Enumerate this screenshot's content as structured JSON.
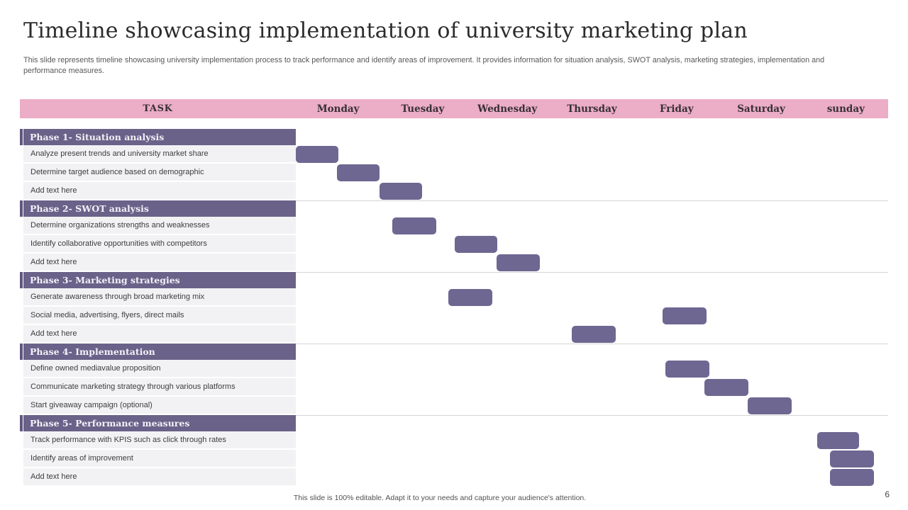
{
  "slide": {
    "title": "Timeline showcasing implementation of university marketing plan",
    "subtitle": "This slide represents timeline showcasing university implementation process to track performance and identify areas of improvement. It provides information for situation analysis, SWOT analysis, marketing strategies, implementation and performance measures.",
    "footer_note": "This slide is 100% editable. Adapt it to your needs and capture your audience's attention.",
    "page_number": "6"
  },
  "colors": {
    "header_pink": "#ecadc6",
    "phase_purple": "#6a6289",
    "accent_purple": "#5f577e",
    "bar_purple": "#6e6791",
    "row_gray": "#f2f2f4",
    "gridline": "#d5d5d9"
  },
  "chart_data": {
    "type": "gantt",
    "task_column_header": "TASK",
    "day_columns": [
      "Monday",
      "Tuesday",
      "Wednesday",
      "Thursday",
      "Friday",
      "Saturday",
      "sunday"
    ],
    "x_axis_range_days": [
      0,
      7
    ],
    "grid": "phase-boundaries-only",
    "phases": [
      {
        "label": "Phase 1- Situation analysis",
        "tasks": [
          {
            "label": "Analyze present trends and university market share",
            "start_day": 0.0,
            "duration_days": 0.5,
            "placeholder": false
          },
          {
            "label": "Determine target audience based on demographic",
            "start_day": 0.49,
            "duration_days": 0.5,
            "placeholder": false
          },
          {
            "label": "Add text here",
            "start_day": 0.99,
            "duration_days": 0.5,
            "placeholder": true
          }
        ]
      },
      {
        "label": "Phase 2- SWOT analysis",
        "tasks": [
          {
            "label": "Determine organizations strengths and weaknesses",
            "start_day": 1.14,
            "duration_days": 0.52,
            "placeholder": false
          },
          {
            "label": "Identify collaborative opportunities with competitors",
            "start_day": 1.88,
            "duration_days": 0.5,
            "placeholder": false
          },
          {
            "label": "Add text here",
            "start_day": 2.37,
            "duration_days": 0.51,
            "placeholder": true
          }
        ]
      },
      {
        "label": "Phase 3- Marketing strategies",
        "tasks": [
          {
            "label": "Generate awareness through broad marketing mix",
            "start_day": 1.8,
            "duration_days": 0.52,
            "placeholder": false
          },
          {
            "label": "Social media, advertising, flyers, direct mails",
            "start_day": 4.33,
            "duration_days": 0.52,
            "placeholder": false
          },
          {
            "label": "Add text here",
            "start_day": 3.26,
            "duration_days": 0.52,
            "placeholder": true
          }
        ]
      },
      {
        "label": "Phase 4- Implementation",
        "tasks": [
          {
            "label": "Define owned mediavalue proposition",
            "start_day": 4.37,
            "duration_days": 0.52,
            "placeholder": false
          },
          {
            "label": "Communicate marketing strategy through various platforms",
            "start_day": 4.83,
            "duration_days": 0.52,
            "placeholder": false
          },
          {
            "label": "Start giveaway campaign (optional)",
            "start_day": 5.34,
            "duration_days": 0.52,
            "placeholder": false
          }
        ]
      },
      {
        "label": "Phase 5- Performance measures",
        "tasks": [
          {
            "label": "Track performance with KPIS such as click through rates",
            "start_day": 6.16,
            "duration_days": 0.5,
            "placeholder": false
          },
          {
            "label": "Identify areas of improvement",
            "start_day": 6.31,
            "duration_days": 0.52,
            "placeholder": false
          },
          {
            "label": "Add text here",
            "start_day": 6.31,
            "duration_days": 0.52,
            "placeholder": true
          }
        ]
      }
    ]
  }
}
